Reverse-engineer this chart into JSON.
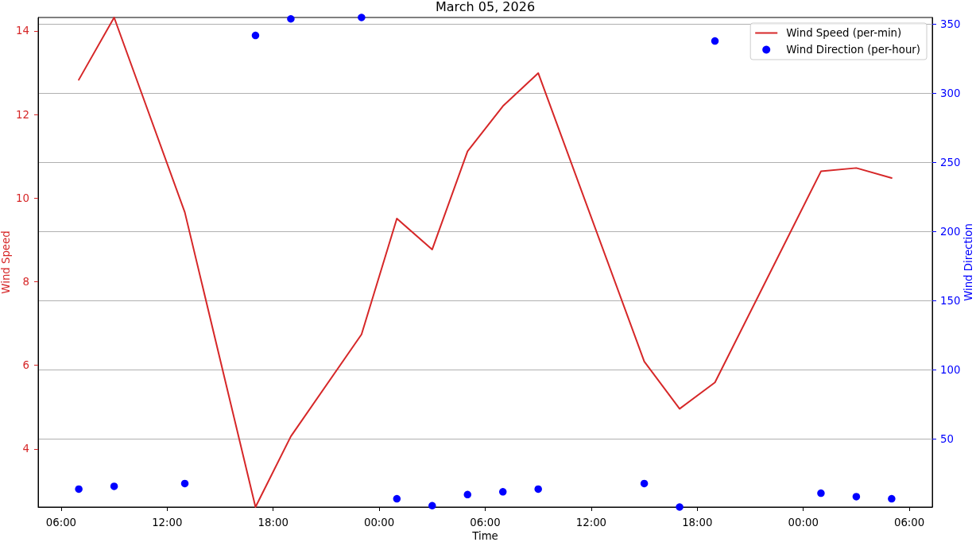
{
  "chart_data": {
    "type": "line",
    "title": "March 05, 2026",
    "xlabel": "Time",
    "ylabel": "Wind Speed",
    "y2label": "Wind Direction",
    "x": [
      "2026-03-05T07:00",
      "2026-03-05T09:00",
      "2026-03-05T13:00",
      "2026-03-05T17:00",
      "2026-03-05T19:00",
      "2026-03-05T23:00",
      "2026-03-06T01:00",
      "2026-03-06T03:00",
      "2026-03-06T05:00",
      "2026-03-06T07:00",
      "2026-03-06T09:00",
      "2026-03-06T15:00",
      "2026-03-06T17:00",
      "2026-03-06T19:00",
      "2026-03-07T01:00",
      "2026-03-07T03:00",
      "2026-03-07T05:00"
    ],
    "series": [
      {
        "name": "Wind Speed (per-min)",
        "color": "#d62728",
        "line_style": "solid",
        "values": [
          12.83,
          14.32,
          9.66,
          2.61,
          4.3,
          6.74,
          9.51,
          8.77,
          11.12,
          12.2,
          12.99,
          6.09,
          4.96,
          5.59,
          10.64,
          10.72,
          10.48
        ]
      },
      {
        "name": "Wind Direction (per-hour)",
        "type": "scatter",
        "axis": "y2",
        "color": "#0000ff",
        "marker": "circle",
        "values": [
          14,
          16,
          18,
          342,
          354,
          355,
          7,
          2,
          10,
          12,
          14,
          18,
          1,
          338,
          11,
          8.5,
          7
        ]
      }
    ],
    "xlim": [
      "2026-03-05T04:42",
      "2026-03-07T07:18"
    ],
    "xticks": [
      {
        "value": "2026-03-05T06:00",
        "label": "06:00"
      },
      {
        "value": "2026-03-05T12:00",
        "label": "12:00"
      },
      {
        "value": "2026-03-05T18:00",
        "label": "18:00"
      },
      {
        "value": "2026-03-06T00:00",
        "label": "00:00"
      },
      {
        "value": "2026-03-06T06:00",
        "label": "06:00"
      },
      {
        "value": "2026-03-06T12:00",
        "label": "12:00"
      },
      {
        "value": "2026-03-06T18:00",
        "label": "18:00"
      },
      {
        "value": "2026-03-07T00:00",
        "label": "00:00"
      },
      {
        "value": "2026-03-07T06:00",
        "label": "06:00"
      }
    ],
    "ylim": [
      2.61,
      14.32
    ],
    "yticks": [
      4,
      6,
      8,
      10,
      12,
      14
    ],
    "y2lim": [
      1,
      355
    ],
    "y2ticks": [
      50,
      100,
      150,
      200,
      250,
      300,
      350
    ],
    "grid": "y2",
    "legend": "top right"
  }
}
